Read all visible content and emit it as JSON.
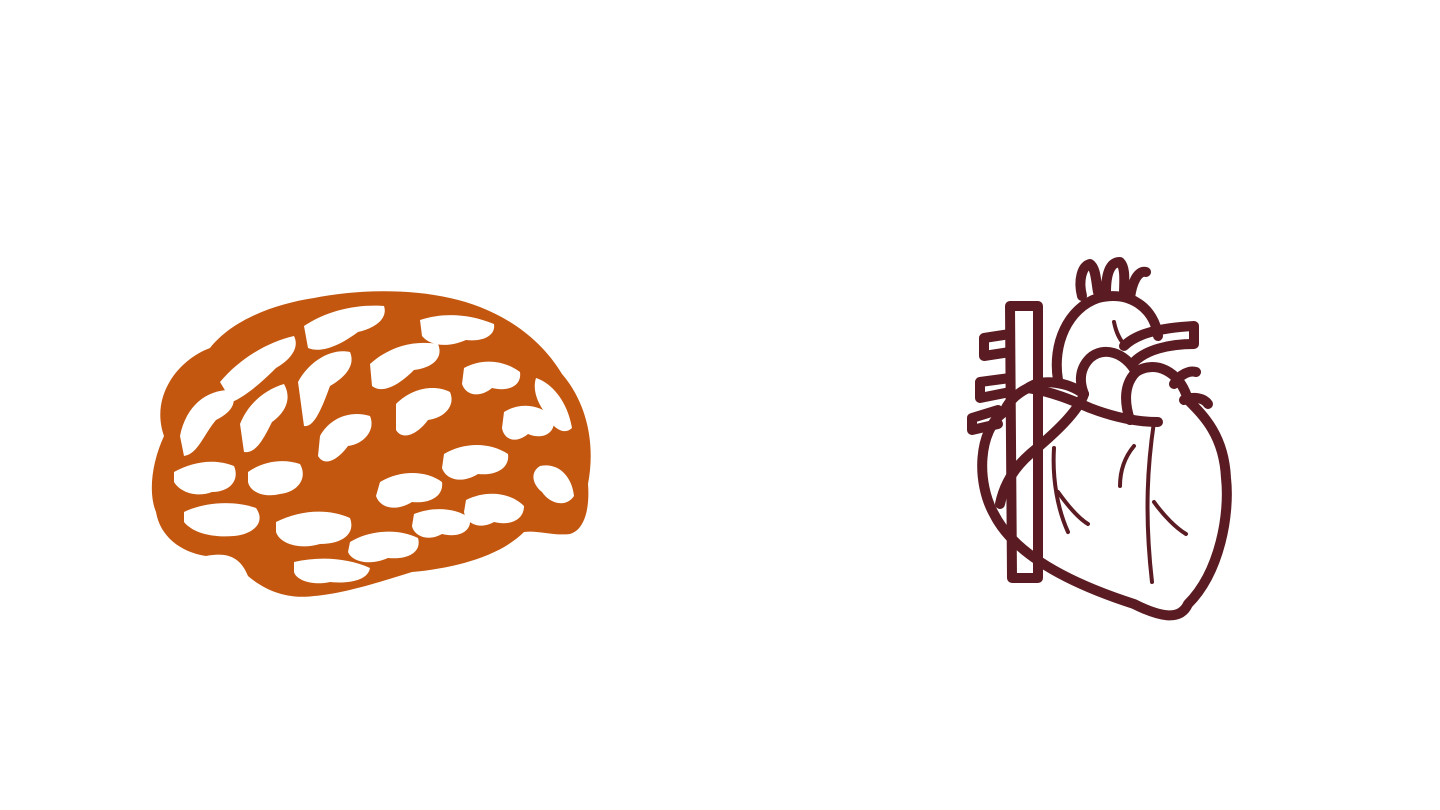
{
  "slide": {
    "background_color": "#ffffff"
  },
  "illustrations": [
    {
      "icon": "brain-icon",
      "view": "side view",
      "color": "#c4570f"
    },
    {
      "icon": "anatomical-heart-icon",
      "style": "outline",
      "color": "#5a1c22"
    }
  ]
}
